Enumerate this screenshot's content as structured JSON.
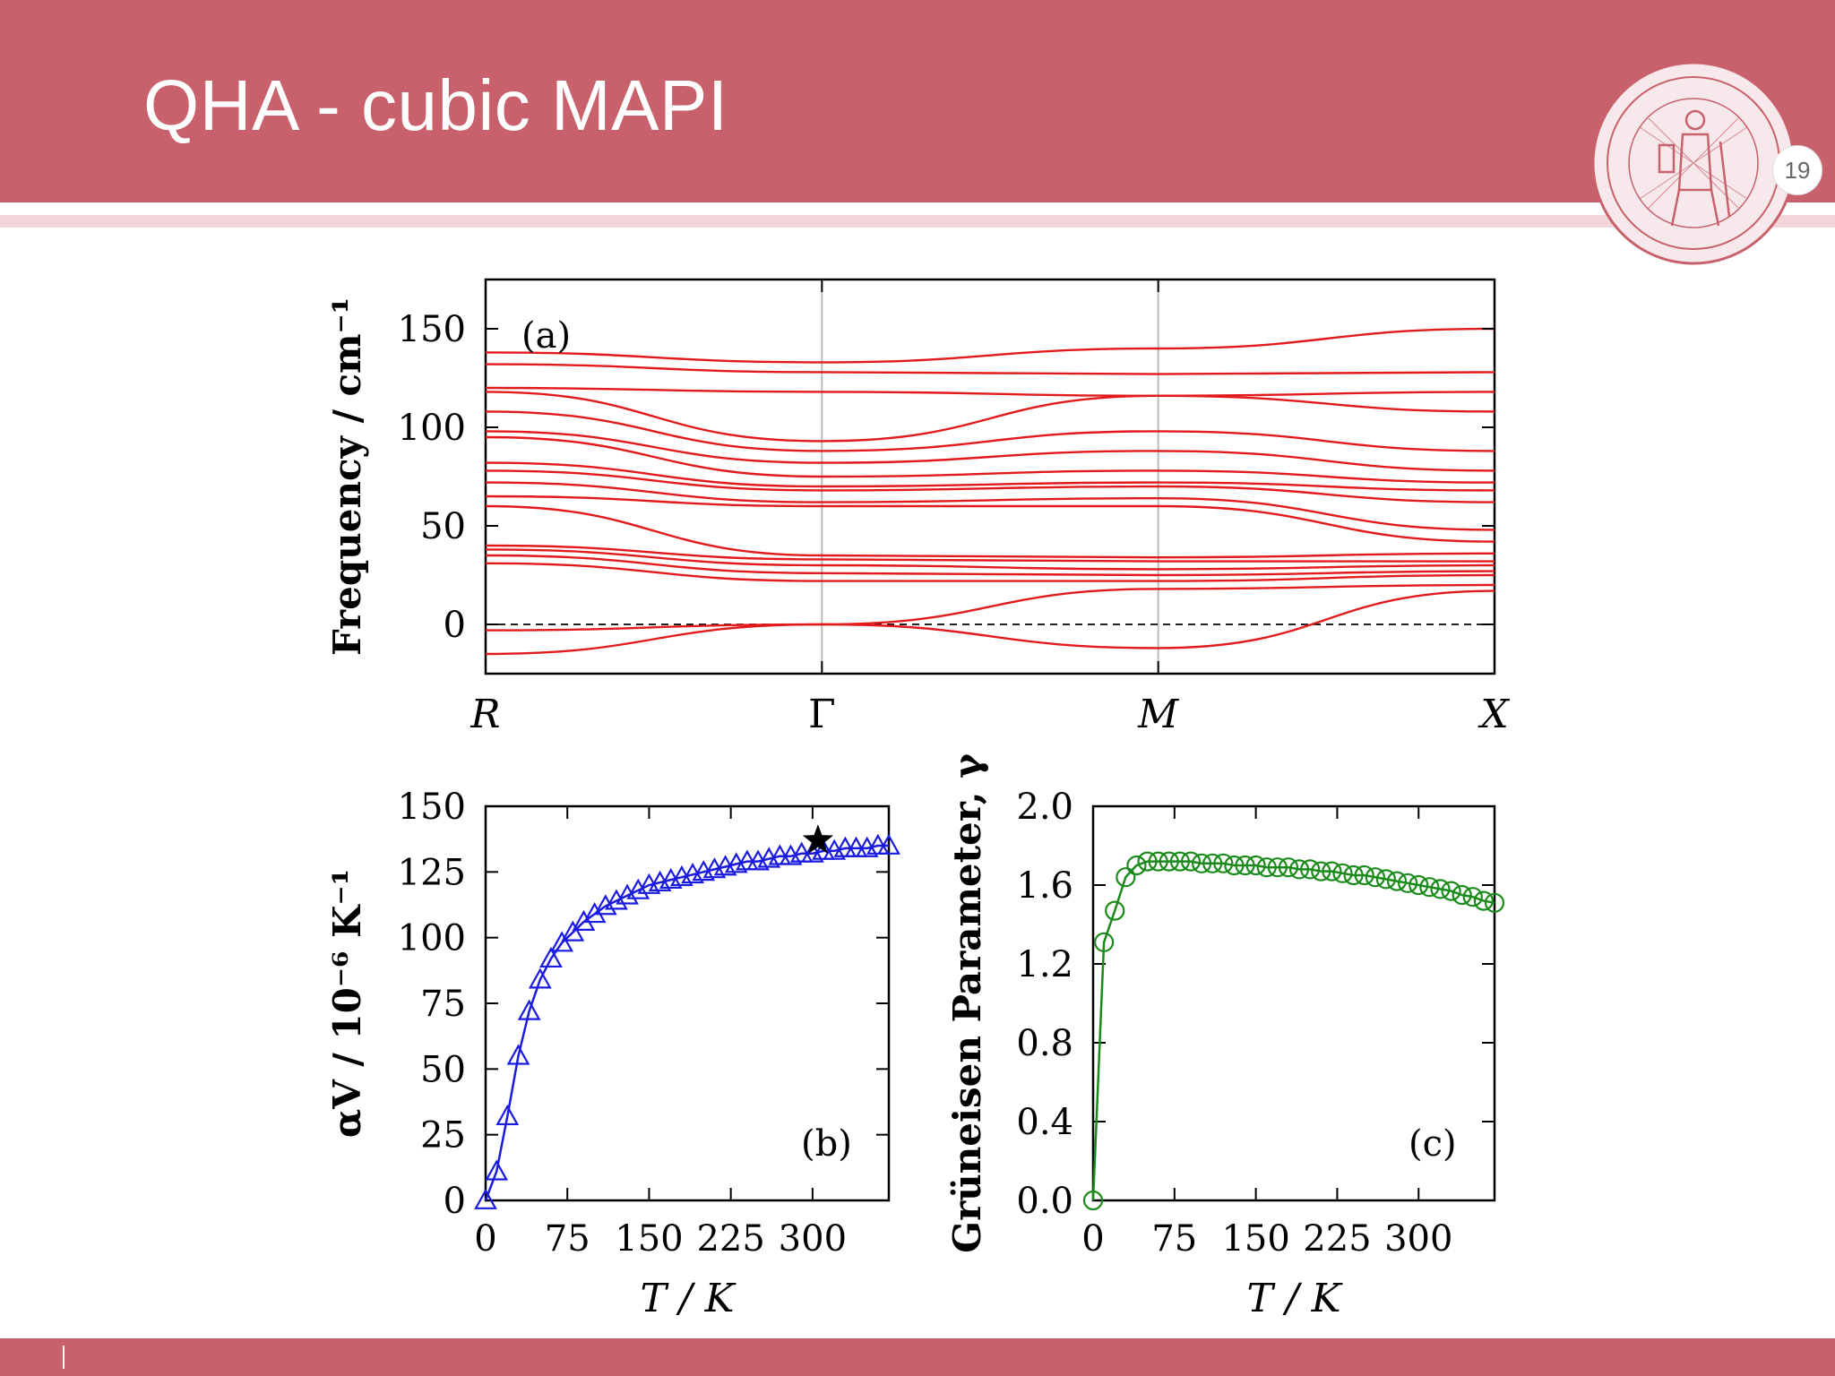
{
  "slide": {
    "title": "QHA - cubic MAPI",
    "page_number": "19",
    "colors": {
      "header": "#c8616c",
      "footer": "#c8616c",
      "title_text": "#ffffff"
    }
  },
  "chart_data": [
    {
      "type": "line",
      "panel_label": "(a)",
      "ylabel": "Frequency / cm⁻¹",
      "ylim": [
        -25,
        175
      ],
      "yticks": [
        0,
        50,
        100,
        150
      ],
      "x_labels": [
        "R",
        "Γ",
        "M",
        "X"
      ],
      "zero_line": "dashed",
      "line_color": "#e31a1c",
      "series": [
        {
          "values": [
            138,
            133,
            140,
            150
          ]
        },
        {
          "values": [
            132,
            128,
            127,
            128
          ]
        },
        {
          "values": [
            120,
            118,
            116,
            118
          ]
        },
        {
          "values": [
            118,
            93,
            116,
            108
          ]
        },
        {
          "values": [
            108,
            88,
            98,
            88
          ]
        },
        {
          "values": [
            98,
            82,
            88,
            78
          ]
        },
        {
          "values": [
            95,
            75,
            78,
            72
          ]
        },
        {
          "values": [
            82,
            70,
            72,
            68
          ]
        },
        {
          "values": [
            78,
            68,
            70,
            62
          ]
        },
        {
          "values": [
            72,
            62,
            64,
            48
          ]
        },
        {
          "values": [
            65,
            60,
            60,
            42
          ]
        },
        {
          "values": [
            60,
            35,
            34,
            36
          ]
        },
        {
          "values": [
            40,
            33,
            32,
            32
          ]
        },
        {
          "values": [
            38,
            30,
            28,
            30
          ]
        },
        {
          "values": [
            35,
            26,
            25,
            27
          ]
        },
        {
          "values": [
            31,
            22,
            22,
            25
          ]
        },
        {
          "values": [
            -3,
            0,
            18,
            20
          ]
        },
        {
          "values": [
            -15,
            0,
            -12,
            17
          ]
        }
      ]
    },
    {
      "type": "scatter",
      "panel_label": "(b)",
      "xlabel": "T / K",
      "ylabel": "αV / 10⁻⁶ K⁻¹",
      "xlim": [
        0,
        370
      ],
      "ylim": [
        0,
        150
      ],
      "xticks": [
        0,
        75,
        150,
        225,
        300
      ],
      "yticks": [
        0,
        25,
        50,
        75,
        100,
        125,
        150
      ],
      "color": "#1a1ae0",
      "marker": "triangle",
      "x": [
        0,
        10,
        20,
        30,
        40,
        50,
        60,
        70,
        80,
        90,
        100,
        110,
        120,
        130,
        140,
        150,
        160,
        170,
        180,
        190,
        200,
        210,
        220,
        230,
        240,
        250,
        260,
        270,
        280,
        290,
        300,
        310,
        320,
        330,
        340,
        350,
        360,
        370
      ],
      "y": [
        0,
        11,
        32,
        55,
        72,
        84,
        92,
        98,
        102,
        106,
        109,
        112,
        114,
        116,
        118,
        120,
        121,
        122,
        123,
        124,
        125,
        126,
        127,
        128,
        129,
        129,
        130,
        131,
        131,
        132,
        132,
        133,
        133,
        134,
        134,
        134,
        135,
        135
      ],
      "reference_point": {
        "x": 305,
        "y": 137,
        "marker": "star"
      }
    },
    {
      "type": "scatter",
      "panel_label": "(c)",
      "xlabel": "T / K",
      "ylabel": "Grüneisen Parameter, γ",
      "xlim": [
        0,
        370
      ],
      "ylim": [
        0,
        2.0
      ],
      "xticks": [
        0,
        75,
        150,
        225,
        300
      ],
      "yticks": [
        0.0,
        0.4,
        0.8,
        1.2,
        1.6,
        2.0
      ],
      "ytick_labels": [
        "0.0",
        "0.4",
        "0.8",
        "1.2",
        "1.6",
        "2.0"
      ],
      "color": "#1a8a1a",
      "marker": "circle",
      "x": [
        0,
        10,
        20,
        30,
        40,
        50,
        60,
        70,
        80,
        90,
        100,
        110,
        120,
        130,
        140,
        150,
        160,
        170,
        180,
        190,
        200,
        210,
        220,
        230,
        240,
        250,
        260,
        270,
        280,
        290,
        300,
        310,
        320,
        330,
        340,
        350,
        360,
        370
      ],
      "y": [
        0.0,
        1.31,
        1.47,
        1.64,
        1.7,
        1.72,
        1.72,
        1.72,
        1.72,
        1.72,
        1.71,
        1.71,
        1.71,
        1.7,
        1.7,
        1.7,
        1.69,
        1.69,
        1.69,
        1.68,
        1.68,
        1.67,
        1.67,
        1.66,
        1.65,
        1.65,
        1.64,
        1.63,
        1.62,
        1.61,
        1.6,
        1.59,
        1.58,
        1.57,
        1.55,
        1.54,
        1.52,
        1.51
      ]
    }
  ]
}
